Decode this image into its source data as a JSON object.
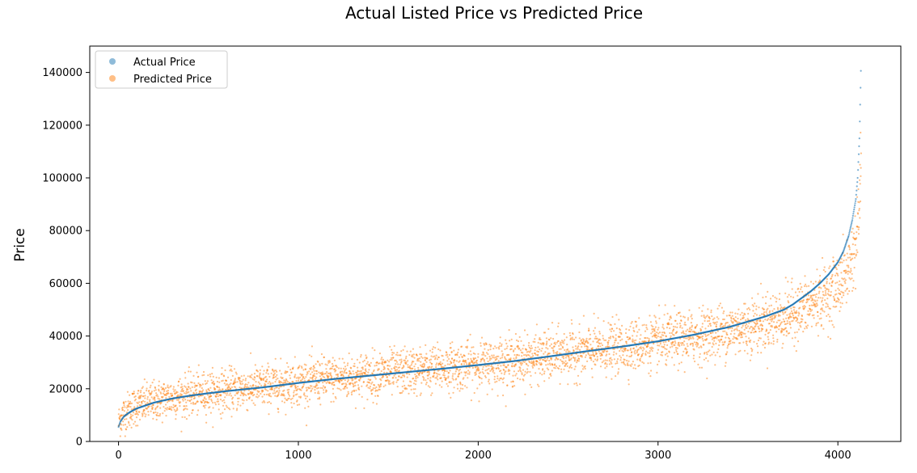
{
  "chart_data": {
    "type": "scatter",
    "title": "Actual Listed Price vs Predicted Price",
    "xlabel": "",
    "ylabel": "Price",
    "xlim": [
      -160,
      4350
    ],
    "ylim": [
      0,
      150000
    ],
    "xticks": [
      0,
      1000,
      2000,
      3000,
      4000
    ],
    "yticks": [
      0,
      20000,
      40000,
      60000,
      80000,
      100000,
      120000,
      140000
    ],
    "legend_position": "top-left",
    "grid": false,
    "n_points": 4130,
    "series": [
      {
        "name": "Actual Price",
        "color": "#1f77b4",
        "description_curve": {
          "x": [
            0,
            10,
            30,
            60,
            100,
            200,
            300,
            400,
            500,
            600,
            700,
            800,
            1000,
            1200,
            1400,
            1600,
            1800,
            2000,
            2200,
            2400,
            2600,
            2800,
            3000,
            3200,
            3400,
            3500,
            3600,
            3700,
            3750,
            3800,
            3850,
            3900,
            3950,
            4000,
            4030,
            4060,
            4080,
            4100,
            4110,
            4120,
            4130
          ],
          "y": [
            5500,
            7500,
            9500,
            11000,
            12500,
            14800,
            16300,
            17400,
            18300,
            19100,
            19800,
            20500,
            22200,
            23700,
            25000,
            26300,
            27600,
            29000,
            30500,
            32300,
            34200,
            36000,
            38000,
            40500,
            43500,
            45500,
            47500,
            50000,
            52000,
            54500,
            57000,
            60000,
            63500,
            68000,
            72000,
            78000,
            84000,
            92000,
            100000,
            115000,
            147000
          ]
        }
      },
      {
        "name": "Predicted Price",
        "color": "#ff7f0e",
        "description_curve": {
          "x": [
            0,
            10,
            30,
            60,
            100,
            200,
            300,
            400,
            500,
            600,
            700,
            800,
            1000,
            1200,
            1400,
            1600,
            1800,
            2000,
            2200,
            2400,
            2600,
            2800,
            3000,
            3200,
            3400,
            3500,
            3600,
            3700,
            3750,
            3800,
            3850,
            3900,
            3950,
            4000,
            4030,
            4060,
            4080,
            4100,
            4110,
            4120,
            4130
          ],
          "y": [
            7000,
            8500,
            10500,
            12000,
            13500,
            15300,
            16700,
            17700,
            18600,
            19400,
            20100,
            20800,
            22400,
            23900,
            25200,
            26500,
            27800,
            29200,
            30700,
            32400,
            34100,
            35800,
            37600,
            39700,
            42300,
            43800,
            45500,
            47200,
            48500,
            50000,
            52000,
            54000,
            56000,
            59000,
            62000,
            66000,
            70000,
            75000,
            80000,
            90000,
            110000
          ],
          "spread_sd": 3000
        }
      }
    ]
  }
}
